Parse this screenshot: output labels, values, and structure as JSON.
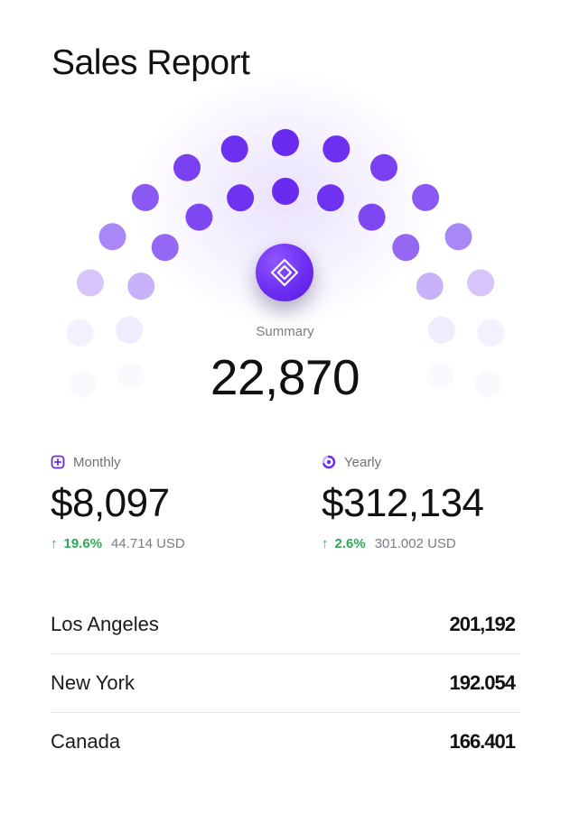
{
  "header": {
    "title": "Sales Report"
  },
  "summary": {
    "label": "Summary",
    "value": "22,870",
    "icon": "diamond-logo-icon"
  },
  "stats": {
    "monthly": {
      "label": "Monthly",
      "icon": "plus-square-icon",
      "value": "$8,097",
      "change": "19.6%",
      "secondary": "44.714 USD"
    },
    "yearly": {
      "label": "Yearly",
      "icon": "ring-chart-icon",
      "value": "$312,134",
      "change": "2.6%",
      "secondary": "301.002 USD"
    }
  },
  "cities": [
    {
      "name": "Los Angeles",
      "value": "201,192"
    },
    {
      "name": "New York",
      "value": "192.054"
    },
    {
      "name": "Canada",
      "value": "166.401"
    }
  ],
  "colors": {
    "accent": "#6a2bf0",
    "positive": "#2faa55",
    "text": "#111114",
    "muted": "#7b7b83"
  }
}
